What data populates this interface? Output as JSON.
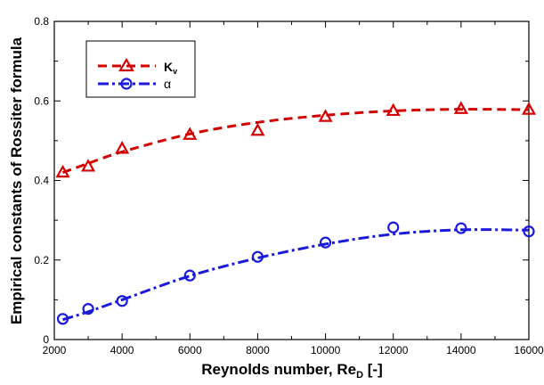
{
  "chart_data": {
    "type": "line",
    "title": "",
    "xlabel": "Reynolds number, Re",
    "xlabel_subscript": "D",
    "xlabel_suffix": " [-]",
    "ylabel": "Empirical constants of Rossiter formula",
    "xlim": [
      2000,
      16000
    ],
    "ylim": [
      0,
      0.8
    ],
    "x_ticks": [
      2000,
      4000,
      6000,
      8000,
      10000,
      12000,
      14000,
      16000
    ],
    "y_ticks": [
      0,
      0.2,
      0.4,
      0.6,
      0.8
    ],
    "x_tick_labels": [
      "2000",
      "4000",
      "6000",
      "8000",
      "10000",
      "12000",
      "14000",
      "16000"
    ],
    "y_tick_labels": [
      "0",
      "0.2",
      "0.4",
      "0.6",
      "0.8"
    ],
    "grid": false,
    "legend_position": "top-left",
    "series": [
      {
        "name": "K",
        "name_subscript": "v",
        "color": "#d40000",
        "marker": "triangle",
        "line_style": "dashed",
        "x": [
          2250,
          3000,
          4000,
          6000,
          8000,
          10000,
          12000,
          14000,
          16000
        ],
        "y": [
          0.42,
          0.435,
          0.48,
          0.515,
          0.525,
          0.56,
          0.575,
          0.58,
          0.578
        ],
        "fit": [
          [
            2250,
            0.42
          ],
          [
            3000,
            0.443
          ],
          [
            4000,
            0.472
          ],
          [
            6000,
            0.517
          ],
          [
            8000,
            0.546
          ],
          [
            10000,
            0.564
          ],
          [
            12000,
            0.575
          ],
          [
            14000,
            0.579
          ],
          [
            16000,
            0.578
          ]
        ]
      },
      {
        "name": "α",
        "color": "#1a1adc",
        "marker": "circle",
        "line_style": "dash-dot",
        "x": [
          2250,
          3000,
          4000,
          6000,
          8000,
          10000,
          12000,
          14000,
          16000
        ],
        "y": [
          0.052,
          0.077,
          0.097,
          0.161,
          0.208,
          0.244,
          0.282,
          0.28,
          0.272
        ],
        "fit": [
          [
            2250,
            0.05
          ],
          [
            3000,
            0.07
          ],
          [
            4000,
            0.1
          ],
          [
            6000,
            0.16
          ],
          [
            8000,
            0.205
          ],
          [
            10000,
            0.24
          ],
          [
            12000,
            0.265
          ],
          [
            14000,
            0.276
          ],
          [
            16000,
            0.275
          ]
        ]
      }
    ]
  }
}
